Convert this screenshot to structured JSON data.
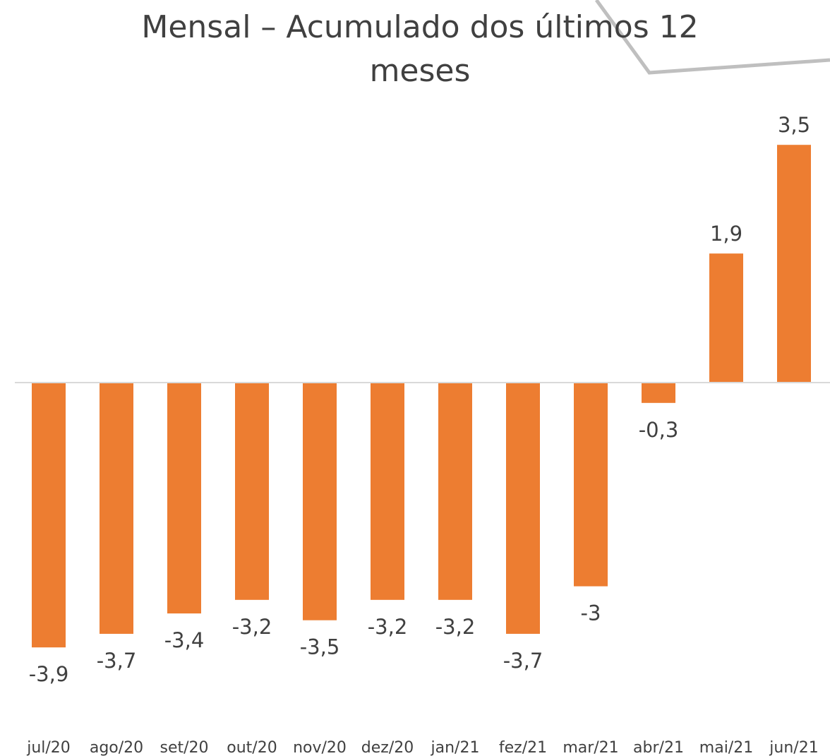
{
  "chart_data": {
    "type": "bar",
    "title": "Mensal – Acumulado dos últimos 12 meses",
    "categories": [
      "jul/20",
      "ago/20",
      "set/20",
      "out/20",
      "nov/20",
      "dez/20",
      "jan/21",
      "fez/21",
      "mar/21",
      "abr/21",
      "mai/21",
      "jun/21"
    ],
    "values": [
      -3.9,
      -3.7,
      -3.4,
      -3.2,
      -3.5,
      -3.2,
      -3.2,
      -3.7,
      -3,
      -0.3,
      1.9,
      3.5
    ],
    "value_labels": [
      "-3,9",
      "-3,7",
      "-3,4",
      "-3,2",
      "-3,5",
      "-3,2",
      "-3,2",
      "-3,7",
      "-3",
      "-0,3",
      "1,9",
      "3,5"
    ],
    "color": "#ed7d31",
    "ylim": [
      -5,
      4.5
    ]
  }
}
